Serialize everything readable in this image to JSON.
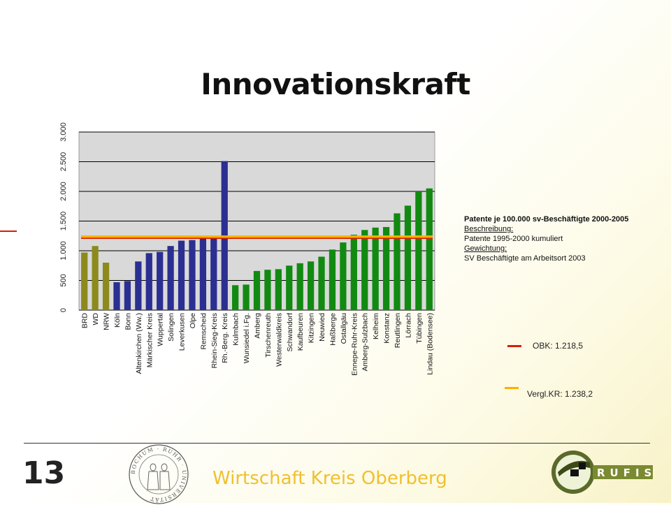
{
  "title": "Innovationskraft",
  "info": {
    "heading": "Patente je 100.000 sv-Beschäftigte 2000-2005",
    "desc_label": "Beschreibung:",
    "desc_text": "Patente 1995-2000 kumuliert",
    "weight_label": "Gewichtung:",
    "weight_text": "SV Beschäftigte am Arbeitsort 2003"
  },
  "legend": {
    "obk_label": "OBK: 1.218,5",
    "vergl_label": "Vergl.KR: 1.238,2"
  },
  "footer": {
    "page_number": "13",
    "text": "Wirtschaft Kreis Oberberg"
  },
  "logo_text": "RUFIS",
  "seal_text": "BOCHUM · RUHR · UNIVERSITÄT",
  "colors": {
    "olive": "#8c8a1d",
    "blue": "#2b2f91",
    "green": "#128a12",
    "plot_bg": "#d9d9d9",
    "obk_line": "#d81e05",
    "vergl_line": "#ffb000"
  },
  "chart_data": {
    "type": "bar",
    "ylim": [
      0,
      3000
    ],
    "yticks": [
      0,
      500,
      1000,
      1500,
      2000,
      2500,
      3000
    ],
    "ytick_labels": [
      "0",
      "500",
      "1.000",
      "1.500",
      "2.000",
      "2.500",
      "3.000"
    ],
    "grid": true,
    "categories": [
      "BRD",
      "WD",
      "NRW",
      "Köln",
      "Bonn",
      "Altenkirchen (Ww.)",
      "Märkischer Kreis",
      "Wuppertal",
      "Solingen",
      "Leverkusen",
      "Olpe",
      "Remscheid",
      "Rhein-Sieg-Kreis",
      "Rh.-Berg. Kreis",
      "Kulmbach",
      "Wunsiedel i.Fg.",
      "Amberg",
      "Tirschenreuth",
      "Westerwaldkreis",
      "Schwandorf",
      "Kaufbeuren",
      "Kitzingen",
      "Neuwied",
      "Haßberge",
      "Ostallgäu",
      "Ennepe-Ruhr-Kreis",
      "Amberg-Sulzbach",
      "Kelheim",
      "Konstanz",
      "Reutlingen",
      "Lörrach",
      "Tübingen",
      "Lindau (Bodensee)"
    ],
    "values": [
      970,
      1080,
      800,
      470,
      490,
      820,
      960,
      980,
      1080,
      1170,
      1180,
      1210,
      1230,
      2510,
      420,
      430,
      660,
      680,
      690,
      750,
      790,
      820,
      900,
      1020,
      1140,
      1270,
      1350,
      1390,
      1400,
      1630,
      1760,
      2000,
      2050
    ],
    "groups": [
      "olive",
      "olive",
      "olive",
      "blue",
      "blue",
      "blue",
      "blue",
      "blue",
      "blue",
      "blue",
      "blue",
      "blue",
      "blue",
      "blue",
      "green",
      "green",
      "green",
      "green",
      "green",
      "green",
      "green",
      "green",
      "green",
      "green",
      "green",
      "green",
      "green",
      "green",
      "green",
      "green",
      "green",
      "green",
      "green"
    ],
    "reference_lines": [
      {
        "value": 1218.5,
        "label": "OBK: 1.218,5",
        "color": "#d81e05"
      },
      {
        "value": 1238.2,
        "label": "Vergl.KR: 1.238,2",
        "color": "#ffb000"
      }
    ]
  }
}
